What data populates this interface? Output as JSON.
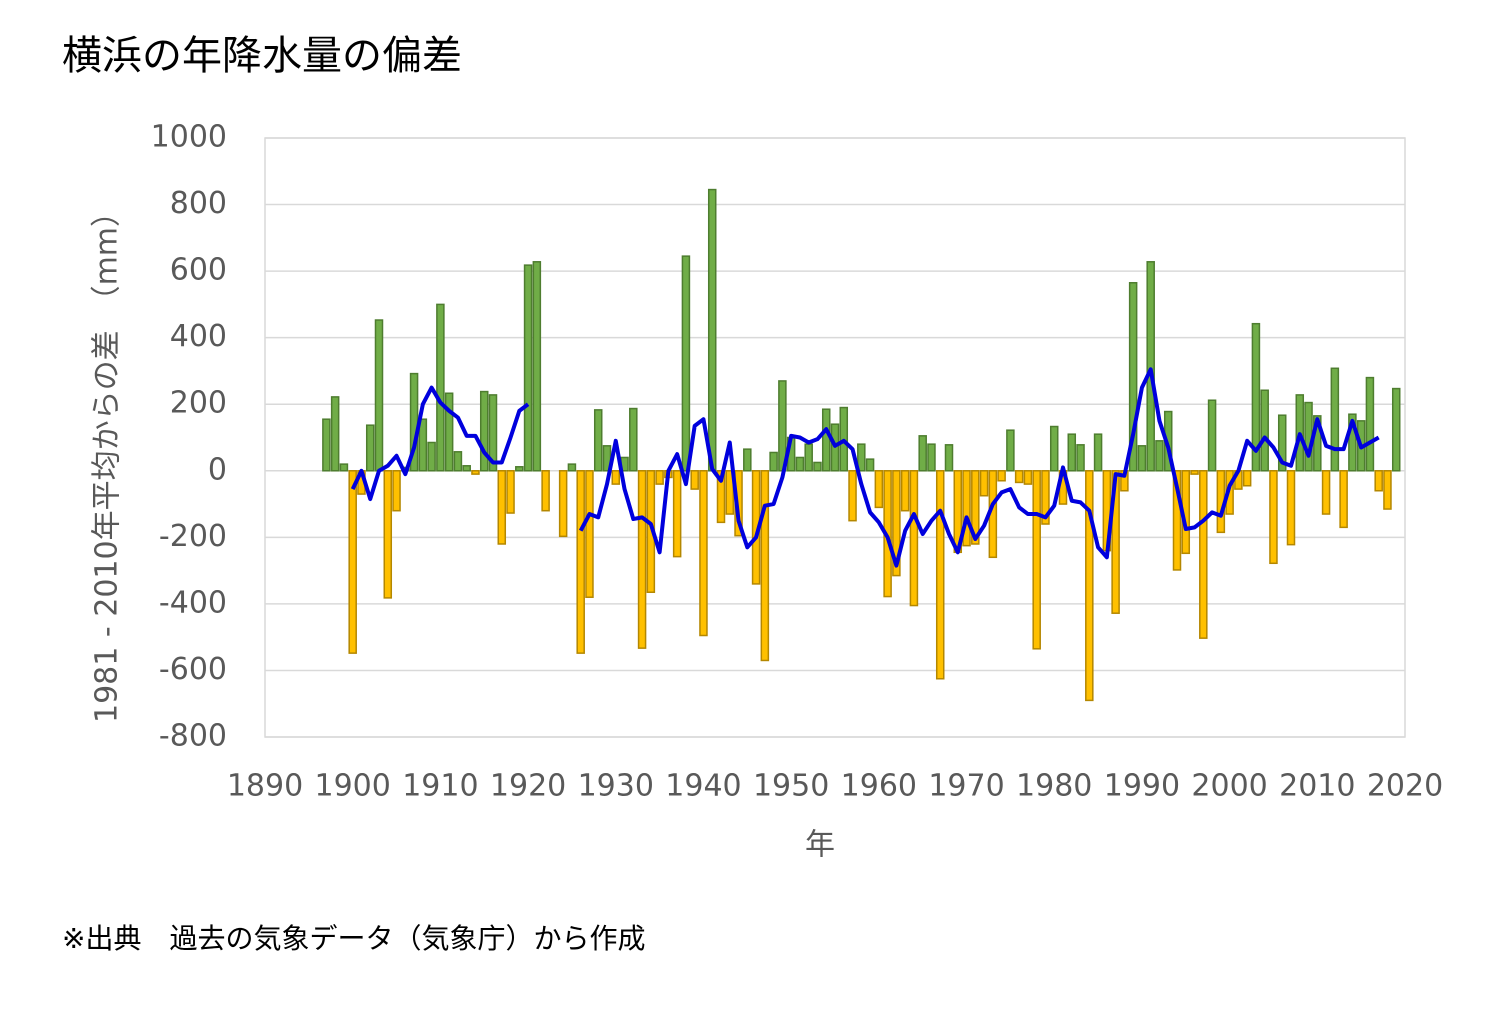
{
  "chart_data": {
    "type": "bar_line",
    "title": "横浜の年降水量の偏差",
    "xlabel": "年",
    "ylabel": "1981 - 2010年平均からの差　（mm）",
    "note": "※出典　過去の気象データ（気象庁）から作成",
    "xlim": [
      1890,
      2020
    ],
    "xticks": [
      1890,
      1900,
      1910,
      1920,
      1930,
      1940,
      1950,
      1960,
      1970,
      1980,
      1990,
      2000,
      2010,
      2020
    ],
    "ylim": [
      -800,
      1000
    ],
    "yticks": [
      -800,
      -600,
      -400,
      -200,
      0,
      200,
      400,
      600,
      800,
      1000
    ],
    "grid": true,
    "positive_color": "#70ad47",
    "negative_color": "#ffc000",
    "bars": {
      "x": [
        1897,
        1898,
        1899,
        1900,
        1901,
        1902,
        1903,
        1904,
        1905,
        1906,
        1907,
        1908,
        1909,
        1910,
        1911,
        1912,
        1913,
        1914,
        1915,
        1916,
        1917,
        1918,
        1919,
        1920,
        1921,
        1922,
        1923,
        1924,
        1925,
        1926,
        1927,
        1928,
        1929,
        1930,
        1931,
        1932,
        1933,
        1934,
        1935,
        1936,
        1937,
        1938,
        1939,
        1940,
        1941,
        1942,
        1943,
        1944,
        1945,
        1946,
        1947,
        1948,
        1949,
        1950,
        1951,
        1952,
        1953,
        1954,
        1955,
        1956,
        1957,
        1958,
        1959,
        1960,
        1961,
        1962,
        1963,
        1964,
        1965,
        1966,
        1967,
        1968,
        1969,
        1970,
        1971,
        1972,
        1973,
        1974,
        1975,
        1976,
        1977,
        1978,
        1979,
        1980,
        1981,
        1982,
        1983,
        1984,
        1985,
        1986,
        1987,
        1988,
        1989,
        1990,
        1991,
        1992,
        1993,
        1994,
        1995,
        1996,
        1997,
        1998,
        1999,
        2000,
        2001,
        2002,
        2003,
        2004,
        2005,
        2006,
        2007,
        2008,
        2009,
        2010,
        2011,
        2012,
        2013,
        2014,
        2015,
        2016,
        2017,
        2018,
        2019
      ],
      "values": [
        155,
        222,
        20,
        -548,
        -70,
        137,
        453,
        -382,
        -120,
        10,
        292,
        155,
        85,
        500,
        233,
        57,
        15,
        -10,
        238,
        228,
        -220,
        -127,
        12,
        618,
        628,
        -120,
        null,
        -197,
        20,
        -548,
        -380,
        183,
        75,
        -40,
        40,
        187,
        -533,
        -365,
        -40,
        -20,
        -258,
        645,
        -55,
        -495,
        845,
        -155,
        -130,
        -195,
        65,
        -340,
        -570,
        55,
        270,
        100,
        40,
        80,
        25,
        185,
        140,
        190,
        -150,
        80,
        35,
        -110,
        -378,
        -315,
        -120,
        -405,
        105,
        80,
        -625,
        78,
        -245,
        -225,
        -220,
        -75,
        -260,
        -30,
        122,
        -35,
        -40,
        -535,
        -160,
        133,
        -100,
        110,
        78,
        -690,
        110,
        -240,
        -428,
        -60,
        565,
        75,
        628,
        90,
        178,
        -298,
        -248,
        -10,
        -503,
        212,
        -185,
        -130,
        -55,
        -45,
        442,
        242,
        -278,
        167,
        -222,
        228,
        205,
        165,
        -130,
        308,
        -170,
        170,
        150,
        280,
        -60,
        -115,
        247
      ]
    },
    "line": {
      "color": "#0000dd",
      "x": [
        1900,
        1901,
        1902,
        1903,
        1904,
        1905,
        1906,
        1907,
        1908,
        1909,
        1910,
        1911,
        1912,
        1913,
        1914,
        1915,
        1916,
        1917,
        1918,
        1919,
        1920,
        1921,
        1922,
        1923,
        1924,
        1925,
        1926,
        1927,
        1928,
        1929,
        1930,
        1931,
        1932,
        1933,
        1934,
        1935,
        1936,
        1937,
        1938,
        1939,
        1940,
        1941,
        1942,
        1943,
        1944,
        1945,
        1946,
        1947,
        1948,
        1949,
        1950,
        1951,
        1952,
        1953,
        1954,
        1955,
        1956,
        1957,
        1958,
        1959,
        1960,
        1961,
        1962,
        1963,
        1964,
        1965,
        1966,
        1967,
        1968,
        1969,
        1970,
        1971,
        1972,
        1973,
        1974,
        1975,
        1976,
        1977,
        1978,
        1979,
        1980,
        1981,
        1982,
        1983,
        1984,
        1985,
        1986,
        1987,
        1988,
        1989,
        1990,
        1991,
        1992,
        1993,
        1994,
        1995,
        1996,
        1997,
        1998,
        1999,
        2000,
        2001,
        2002,
        2003,
        2004,
        2005,
        2006,
        2007,
        2008,
        2009,
        2010,
        2011,
        2012,
        2013,
        2014,
        2015,
        2016,
        2017
      ],
      "values": [
        -55,
        0,
        -85,
        0,
        15,
        45,
        -10,
        70,
        200,
        250,
        205,
        180,
        160,
        105,
        105,
        55,
        25,
        25,
        100,
        180,
        200,
        null,
        null,
        null,
        null,
        null,
        -180,
        -130,
        -140,
        -40,
        90,
        -55,
        -145,
        -140,
        -160,
        -245,
        0,
        50,
        -40,
        135,
        155,
        5,
        -30,
        85,
        -150,
        -230,
        -200,
        -105,
        -100,
        -20,
        105,
        100,
        85,
        95,
        125,
        75,
        90,
        65,
        -40,
        -125,
        -155,
        -200,
        -285,
        -180,
        -130,
        -190,
        -150,
        -120,
        -190,
        -245,
        -140,
        -205,
        -165,
        -100,
        -65,
        -55,
        -110,
        -130,
        -130,
        -140,
        -105,
        10,
        -90,
        -95,
        -120,
        -230,
        -260,
        -10,
        -15,
        110,
        250,
        305,
        150,
        70,
        -50,
        -175,
        -170,
        -150,
        -125,
        -135,
        -45,
        0,
        90,
        60,
        100,
        70,
        25,
        15,
        110,
        45,
        155,
        75,
        65,
        65,
        150,
        70,
        85,
        100
      ]
    }
  }
}
